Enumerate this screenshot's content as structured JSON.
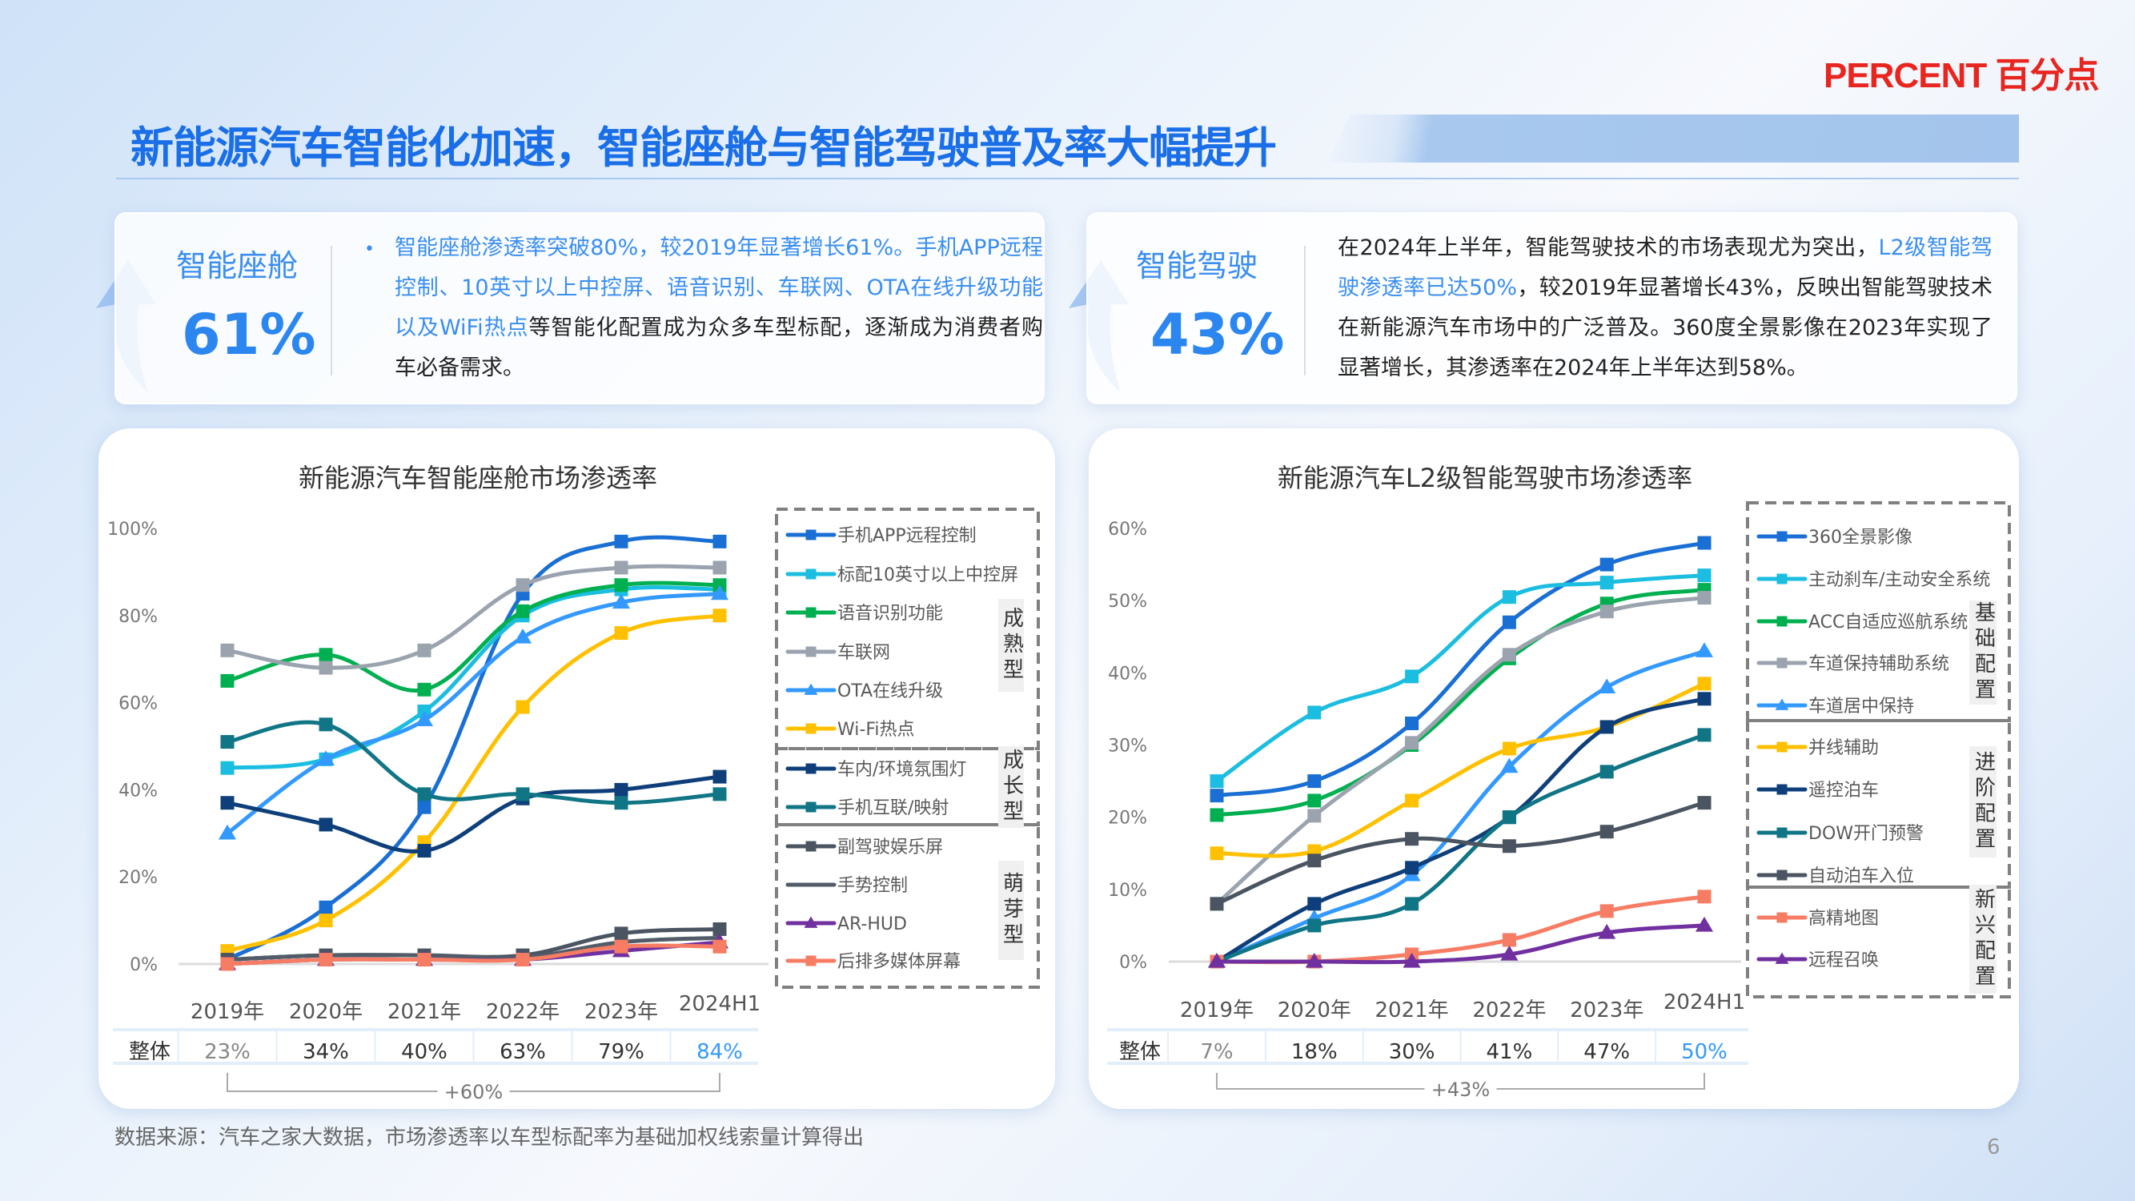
{
  "logo": {
    "text": "PERCENT 百分点",
    "color": "#e8251f"
  },
  "title": "新能源汽车智能化加速，智能座舱与智能驾驶普及率大幅提升",
  "cards": [
    {
      "label": "智能座舱",
      "value": "61%",
      "text_highlight": "智能座舱渗透率突破80%，较2019年显著增长61%。手机APP远程控制、10英寸以上中控屏、语音识别、车联网、OTA在线升级功能以及WiFi热点",
      "text_rest": "等智能化配置成为众多车型标配，逐渐成为消费者购车必备需求。"
    },
    {
      "label": "智能驾驶",
      "value": "43%",
      "text_pre": "在2024年上半年，智能驾驶技术的市场表现尤为突出，",
      "text_highlight": "L2级智能驾驶渗透率已达50%",
      "text_rest": "，较2019年显著增长43%，反映出智能驾驶技术在新能源汽车市场中的广泛普及。360度全景影像在2023年实现了显著增长，其渗透率在2024年上半年达到58%。"
    }
  ],
  "chart_data": [
    {
      "type": "line",
      "title": "新能源汽车智能座舱市场渗透率",
      "categories": [
        "2019年",
        "2020年",
        "2021年",
        "2022年",
        "2023年",
        "2024H1"
      ],
      "ylim": [
        0,
        100
      ],
      "yticks": [
        "0%",
        "20%",
        "40%",
        "60%",
        "80%",
        "100%"
      ],
      "ytick_values": [
        0,
        20,
        40,
        60,
        80,
        100
      ],
      "grid": false,
      "legend": "right",
      "groups": [
        "成熟型",
        "成长型",
        "萌芽型"
      ],
      "series": [
        {
          "name": "手机APP远程控制",
          "color": "#1a6fd4",
          "marker": "square",
          "group": 0,
          "values": [
            1,
            13,
            36,
            85,
            97,
            97
          ]
        },
        {
          "name": "标配10英寸以上中控屏",
          "color": "#1bbde0",
          "marker": "square",
          "group": 0,
          "values": [
            45,
            47,
            58,
            80,
            86,
            86
          ]
        },
        {
          "name": "语音识别功能",
          "color": "#00b050",
          "marker": "square",
          "group": 0,
          "values": [
            65,
            71,
            63,
            81,
            87,
            87
          ]
        },
        {
          "name": "车联网",
          "color": "#9aa3ae",
          "marker": "square",
          "group": 0,
          "values": [
            72,
            68,
            72,
            87,
            91,
            91
          ]
        },
        {
          "name": "OTA在线升级",
          "color": "#3399ff",
          "marker": "triangle",
          "group": 0,
          "values": [
            30,
            47,
            56,
            75,
            83,
            85
          ]
        },
        {
          "name": "Wi-Fi热点",
          "color": "#ffc000",
          "marker": "square",
          "group": 0,
          "values": [
            3,
            10,
            28,
            59,
            76,
            80
          ]
        },
        {
          "name": "车内/环境氛围灯",
          "color": "#0e3f7a",
          "marker": "square",
          "group": 1,
          "values": [
            37,
            32,
            26,
            38,
            40,
            43
          ]
        },
        {
          "name": "手机互联/映射",
          "color": "#107585",
          "marker": "square",
          "group": 1,
          "values": [
            51,
            55,
            39,
            39,
            37,
            39
          ]
        },
        {
          "name": "副驾驶娱乐屏",
          "color": "#4a5561",
          "marker": "square",
          "group": 2,
          "values": [
            1,
            2,
            2,
            2,
            7,
            8
          ]
        },
        {
          "name": "手势控制",
          "color": "#525c68",
          "marker": "none",
          "group": 2,
          "values": [
            1,
            2,
            2,
            1.5,
            5,
            6
          ]
        },
        {
          "name": "AR-HUD",
          "color": "#7030a0",
          "marker": "triangle",
          "group": 2,
          "values": [
            0,
            1,
            1,
            1,
            3,
            5
          ]
        },
        {
          "name": "后排多媒体屏幕",
          "color": "#f67c63",
          "marker": "square",
          "group": 2,
          "values": [
            0,
            1,
            1,
            1,
            4,
            4
          ]
        }
      ],
      "overall": {
        "label": "整体",
        "values": [
          "23%",
          "34%",
          "40%",
          "63%",
          "79%",
          "84%"
        ],
        "highlight_color": "#3399ff"
      },
      "delta": "+60%"
    },
    {
      "type": "line",
      "title": "新能源汽车L2级智能驾驶市场渗透率",
      "categories": [
        "2019年",
        "2020年",
        "2021年",
        "2022年",
        "2023年",
        "2024H1"
      ],
      "ylim": [
        0,
        60
      ],
      "yticks": [
        "0%",
        "10%",
        "20%",
        "30%",
        "40%",
        "50%",
        "60%"
      ],
      "ytick_values": [
        0,
        10,
        20,
        30,
        40,
        50,
        60
      ],
      "grid": false,
      "legend": "right",
      "groups": [
        "基础配置",
        "进阶配置",
        "新兴配置"
      ],
      "series": [
        {
          "name": "360全景影像",
          "color": "#1a6fd4",
          "marker": "square",
          "group": 0,
          "values": [
            23,
            25,
            33,
            47,
            55,
            58
          ]
        },
        {
          "name": "主动刹车/主动安全系统",
          "color": "#1bbde0",
          "marker": "square",
          "group": 0,
          "values": [
            25,
            34.5,
            39.5,
            50.5,
            52.5,
            53.5
          ]
        },
        {
          "name": "ACC自适应巡航系统",
          "color": "#00b050",
          "marker": "square",
          "group": 0,
          "values": [
            20.3,
            22.3,
            30,
            42,
            49.6,
            51.5
          ]
        },
        {
          "name": "车道保持辅助系统",
          "color": "#9aa3ae",
          "marker": "square",
          "group": 0,
          "values": [
            8,
            20.2,
            30.3,
            42.5,
            48.5,
            50.4
          ]
        },
        {
          "name": "车道居中保持",
          "color": "#3399ff",
          "marker": "triangle",
          "group": 0,
          "values": [
            0,
            6,
            12,
            27,
            38,
            43
          ]
        },
        {
          "name": "并线辅助",
          "color": "#ffc000",
          "marker": "square",
          "group": 1,
          "values": [
            15,
            15.3,
            22.3,
            29.5,
            32.5,
            38.5
          ]
        },
        {
          "name": "遥控泊车",
          "color": "#0e3f7a",
          "marker": "square",
          "group": 1,
          "values": [
            0,
            8,
            13,
            20,
            32.5,
            36.4
          ]
        },
        {
          "name": "DOW开门预警",
          "color": "#107585",
          "marker": "square",
          "group": 1,
          "values": [
            0,
            5,
            8,
            20,
            26.3,
            31.4
          ]
        },
        {
          "name": "自动泊车入位",
          "color": "#4a5561",
          "marker": "square",
          "group": 1,
          "values": [
            8,
            14,
            17,
            16,
            18,
            22
          ]
        },
        {
          "name": "高精地图",
          "color": "#f67c63",
          "marker": "square",
          "group": 2,
          "values": [
            0,
            0,
            1,
            3,
            7,
            9
          ]
        },
        {
          "name": "远程召唤",
          "color": "#7030a0",
          "marker": "triangle",
          "group": 2,
          "values": [
            0,
            0,
            0,
            1,
            4,
            5
          ]
        }
      ],
      "overall": {
        "label": "整体",
        "values": [
          "7%",
          "18%",
          "30%",
          "41%",
          "47%",
          "50%"
        ],
        "highlight_color": "#3399ff"
      },
      "delta": "+43%"
    }
  ],
  "footer": "数据来源：汽车之家大数据，市场渗透率以车型标配率为基础加权线索量计算得出",
  "page_number": "6"
}
